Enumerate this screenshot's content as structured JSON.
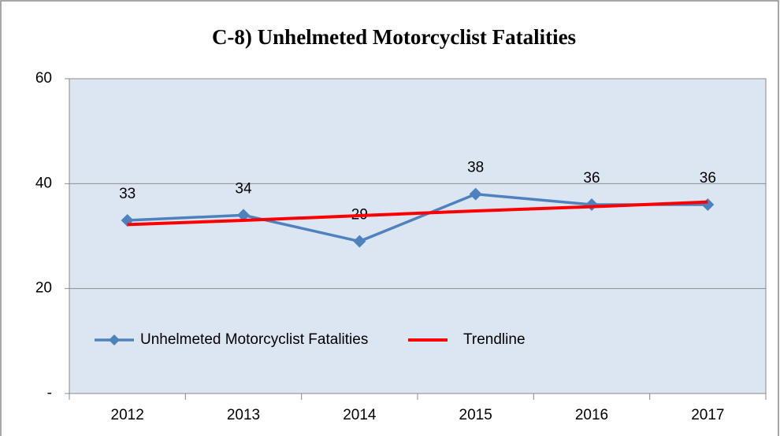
{
  "chart_data": {
    "type": "line",
    "title": "C-8) Unhelmeted Motorcyclist Fatalities",
    "categories": [
      "2012",
      "2013",
      "2014",
      "2015",
      "2016",
      "2017"
    ],
    "series": [
      {
        "name": "Unhelmeted Motorcyclist Fatalities",
        "color": "#4f81bd",
        "values": [
          33,
          34,
          29,
          38,
          36,
          36
        ],
        "markers": true,
        "data_labels": true
      },
      {
        "name": "Trendline",
        "color": "#ff0000",
        "values": [
          32.2,
          33.0,
          33.9,
          34.8,
          35.6,
          36.5
        ],
        "markers": false,
        "data_labels": false
      }
    ],
    "ylim": [
      0,
      60
    ],
    "yticks": [
      {
        "value": 0,
        "label": "-"
      },
      20,
      40,
      60
    ],
    "grid": true,
    "legend": "inside-lower-left",
    "plot_background": "#dce6f2"
  }
}
